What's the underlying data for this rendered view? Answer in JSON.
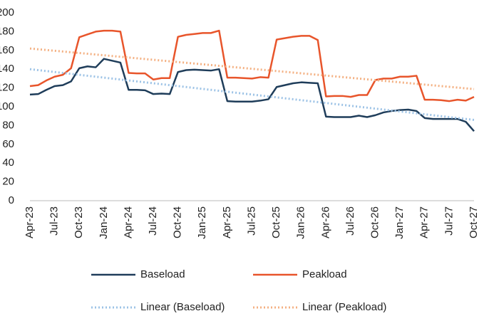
{
  "chart_data": {
    "type": "line",
    "categories": [
      "Apr-23",
      null,
      null,
      "Jul-23",
      null,
      null,
      "Oct-23",
      null,
      null,
      "Jan-24",
      null,
      null,
      "Apr-24",
      null,
      null,
      "Jul-24",
      null,
      null,
      "Oct-24",
      null,
      null,
      "Jan-25",
      null,
      null,
      "Apr-25",
      null,
      null,
      "Jul-25",
      null,
      null,
      "Oct-25",
      null,
      null,
      "Jan-26",
      null,
      null,
      "Apr-26",
      null,
      null,
      "Jul-26",
      null,
      null,
      "Oct-26",
      null,
      null,
      "Jan-27",
      null,
      null,
      "Apr-27",
      null,
      null,
      "Jul-27",
      null,
      null,
      "Oct-27"
    ],
    "series": [
      {
        "name": "Baseload",
        "color": "#1f3d5a",
        "style": "solid",
        "values": [
          113,
          113.5,
          118,
          122,
          123,
          127,
          141,
          143,
          142,
          151,
          149,
          147,
          118,
          118,
          117.5,
          113.5,
          114,
          113.5,
          137,
          139,
          139.5,
          139,
          138.5,
          140,
          106,
          105.5,
          105.5,
          105.5,
          106.5,
          108,
          121,
          123,
          125,
          126,
          125.5,
          125,
          89.5,
          89,
          89,
          89,
          90.5,
          89,
          91,
          94,
          95.5,
          96.5,
          97,
          95.5,
          88,
          87,
          87,
          87,
          87,
          84,
          74
        ]
      },
      {
        "name": "Peakload",
        "color": "#e8552b",
        "style": "solid",
        "values": [
          122,
          123,
          128,
          132,
          134,
          141,
          174,
          177,
          180,
          181,
          181,
          180,
          136,
          135.5,
          135.5,
          129,
          130.5,
          130.5,
          174.5,
          176.5,
          177.5,
          178.5,
          178.5,
          181,
          131,
          131,
          130.5,
          130,
          131.5,
          131,
          171.5,
          173,
          174.5,
          175.5,
          175.5,
          171,
          111,
          111.5,
          111.5,
          110.5,
          112.5,
          112.5,
          128.5,
          130,
          130,
          132,
          132,
          133,
          107.5,
          107.5,
          107,
          106,
          107.5,
          106.5,
          110.5
        ]
      },
      {
        "name": "Linear (Baseload)",
        "color": "#9dc3e6",
        "style": "dotted",
        "values": [
          140,
          139,
          138,
          137,
          136,
          135,
          134,
          133,
          132,
          131,
          130,
          129,
          128,
          127,
          126,
          125,
          124,
          123,
          122,
          121,
          120,
          119,
          118,
          117,
          116,
          115,
          114,
          113,
          112,
          111,
          110,
          109,
          108,
          107,
          106,
          105,
          104,
          103,
          102,
          101,
          100,
          99,
          98,
          97,
          96,
          95,
          94,
          93,
          92,
          91,
          90,
          89,
          88,
          87,
          86
        ]
      },
      {
        "name": "Linear (Peakload)",
        "color": "#f4b183",
        "style": "dotted",
        "values": [
          162,
          161.2,
          160.4,
          159.6,
          158.8,
          158,
          157.2,
          156.4,
          155.6,
          154.8,
          154,
          153.2,
          152.4,
          151.6,
          150.8,
          150,
          149.2,
          148.4,
          147.6,
          146.8,
          146,
          145.2,
          144.4,
          143.6,
          142.8,
          142,
          141.2,
          140.4,
          139.6,
          138.8,
          138,
          137.2,
          136.4,
          135.6,
          134.8,
          134,
          133.2,
          132.4,
          131.6,
          130.8,
          130,
          129.2,
          128.4,
          127.6,
          126.8,
          126,
          125.2,
          124.4,
          123.6,
          122.8,
          122,
          121.2,
          120.4,
          119.6,
          118.8
        ]
      }
    ],
    "ylim": [
      0,
      200
    ],
    "yticks": [
      0,
      20,
      40,
      60,
      80,
      100,
      120,
      140,
      160,
      180,
      200
    ],
    "grid": false
  }
}
